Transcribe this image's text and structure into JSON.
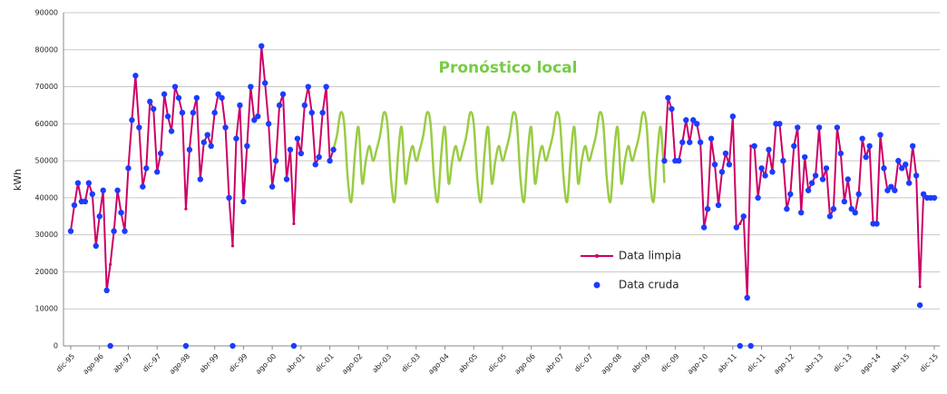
{
  "chart_data": {
    "type": "line",
    "y_label": "kWh",
    "annotation": "Pronóstico local",
    "annotation_color": "#77cc44",
    "ylim": [
      0,
      90000
    ],
    "yticks": [
      0,
      10000,
      20000,
      30000,
      40000,
      50000,
      60000,
      70000,
      80000,
      90000
    ],
    "grid": true,
    "legend": "lower center",
    "categories": [
      "dic-95",
      null,
      null,
      null,
      null,
      null,
      null,
      null,
      "ago-96",
      null,
      null,
      null,
      null,
      null,
      null,
      null,
      "abr-97",
      null,
      null,
      null,
      null,
      null,
      null,
      null,
      "dic-97",
      null,
      null,
      null,
      null,
      null,
      null,
      null,
      "ago-98",
      null,
      null,
      null,
      null,
      null,
      null,
      null,
      "abr-99",
      null,
      null,
      null,
      null,
      null,
      null,
      null,
      "dic-99",
      null,
      null,
      null,
      null,
      null,
      null,
      null,
      "ago-00",
      null,
      null,
      null,
      null,
      null,
      null,
      null,
      "abr-01",
      null,
      null,
      null,
      null,
      null,
      null,
      null,
      "dic-01",
      null,
      null,
      null,
      null,
      null,
      null,
      null,
      "ago-02",
      null,
      null,
      null,
      null,
      null,
      null,
      null,
      "abr-03",
      null,
      null,
      null,
      null,
      null,
      null,
      null,
      "dic-03",
      null,
      null,
      null,
      null,
      null,
      null,
      null,
      "ago-04",
      null,
      null,
      null,
      null,
      null,
      null,
      null,
      "abr-05",
      null,
      null,
      null,
      null,
      null,
      null,
      null,
      "dic-05",
      null,
      null,
      null,
      null,
      null,
      null,
      null,
      "ago-06",
      null,
      null,
      null,
      null,
      null,
      null,
      null,
      "abr-07",
      null,
      null,
      null,
      null,
      null,
      null,
      null,
      "dic-07",
      null,
      null,
      null,
      null,
      null,
      null,
      null,
      "ago-08",
      null,
      null,
      null,
      null,
      null,
      null,
      null,
      "abr-09",
      null,
      null,
      null,
      null,
      null,
      null,
      null,
      "dic-09",
      null,
      null,
      null,
      null,
      null,
      null,
      null,
      "ago-10",
      null,
      null,
      null,
      null,
      null,
      null,
      null,
      "abr-11",
      null,
      null,
      null,
      null,
      null,
      null,
      null,
      "dic-11",
      null,
      null,
      null,
      null,
      null,
      null,
      null,
      "ago-12",
      null,
      null,
      null,
      null,
      null,
      null,
      null,
      "abr-13",
      null,
      null,
      null,
      null,
      null,
      null,
      null,
      "dic-13",
      null,
      null,
      null,
      null,
      null,
      null,
      null,
      "ago-14",
      null,
      null,
      null,
      null,
      null,
      null,
      null,
      "abr-15",
      null,
      null,
      null,
      null,
      null,
      null,
      null,
      "dic-15"
    ],
    "series": [
      {
        "name": "Data limpia",
        "color": "#cc0066",
        "style": "line-markers",
        "values": [
          31000,
          38000,
          44000,
          39000,
          39000,
          44000,
          41000,
          27000,
          35000,
          42000,
          15000,
          22000,
          31000,
          42000,
          36000,
          31000,
          48000,
          61000,
          73000,
          59000,
          43000,
          48000,
          66000,
          64000,
          47000,
          52000,
          68000,
          62000,
          58000,
          70000,
          67000,
          63000,
          37000,
          53000,
          63000,
          67000,
          45000,
          55000,
          57000,
          54000,
          63000,
          68000,
          67000,
          59000,
          40000,
          27000,
          56000,
          65000,
          39000,
          54000,
          70000,
          61000,
          62000,
          81000,
          71000,
          60000,
          43000,
          50000,
          65000,
          68000,
          45000,
          53000,
          33000,
          56000,
          52000,
          65000,
          70000,
          63000,
          49000,
          51000,
          63000,
          70000,
          50000,
          53000,
          null,
          null,
          null,
          null,
          null,
          null,
          null,
          null,
          null,
          null,
          null,
          null,
          null,
          null,
          null,
          null,
          null,
          null,
          null,
          null,
          null,
          null,
          null,
          null,
          null,
          null,
          null,
          null,
          null,
          null,
          null,
          null,
          null,
          null,
          null,
          null,
          null,
          null,
          null,
          null,
          null,
          null,
          null,
          null,
          null,
          null,
          null,
          null,
          null,
          null,
          null,
          null,
          null,
          null,
          null,
          null,
          null,
          null,
          null,
          null,
          null,
          null,
          null,
          null,
          null,
          null,
          null,
          null,
          null,
          null,
          null,
          null,
          null,
          null,
          null,
          null,
          null,
          null,
          null,
          null,
          null,
          null,
          null,
          null,
          null,
          null,
          null,
          null,
          null,
          null,
          null,
          50000,
          67000,
          64000,
          50000,
          50000,
          55000,
          61000,
          55000,
          61000,
          60000,
          55000,
          32000,
          37000,
          56000,
          49000,
          38000,
          47000,
          52000,
          49000,
          62000,
          32000,
          33000,
          35000,
          13000,
          54000,
          54000,
          40000,
          48000,
          46000,
          53000,
          47000,
          60000,
          60000,
          50000,
          37000,
          41000,
          54000,
          59000,
          36000,
          51000,
          42000,
          44000,
          46000,
          59000,
          45000,
          48000,
          35000,
          37000,
          59000,
          52000,
          39000,
          45000,
          37000,
          36000,
          41000,
          56000,
          51000,
          54000,
          33000,
          33000,
          57000,
          48000,
          42000,
          43000,
          42000,
          50000,
          48000,
          49000,
          44000,
          54000,
          46000,
          16000,
          41000,
          40000,
          40000,
          40000
        ]
      },
      {
        "name": "Data cruda",
        "color": "#1a3cff",
        "style": "markers",
        "values": [
          31000,
          38000,
          44000,
          39000,
          39000,
          44000,
          41000,
          27000,
          35000,
          42000,
          15000,
          0,
          31000,
          42000,
          36000,
          31000,
          48000,
          61000,
          73000,
          59000,
          43000,
          48000,
          66000,
          64000,
          47000,
          52000,
          68000,
          62000,
          58000,
          70000,
          67000,
          63000,
          0,
          53000,
          63000,
          67000,
          45000,
          55000,
          57000,
          54000,
          63000,
          68000,
          67000,
          59000,
          40000,
          0,
          56000,
          65000,
          39000,
          54000,
          70000,
          61000,
          62000,
          81000,
          71000,
          60000,
          43000,
          50000,
          65000,
          68000,
          45000,
          53000,
          0,
          56000,
          52000,
          65000,
          70000,
          63000,
          49000,
          51000,
          63000,
          70000,
          50000,
          53000,
          null,
          null,
          null,
          null,
          null,
          null,
          null,
          null,
          null,
          null,
          null,
          null,
          null,
          null,
          null,
          null,
          null,
          null,
          null,
          null,
          null,
          null,
          null,
          null,
          null,
          null,
          null,
          null,
          null,
          null,
          null,
          null,
          null,
          null,
          null,
          null,
          null,
          null,
          null,
          null,
          null,
          null,
          null,
          null,
          null,
          null,
          null,
          null,
          null,
          null,
          null,
          null,
          null,
          null,
          null,
          null,
          null,
          null,
          null,
          null,
          null,
          null,
          null,
          null,
          null,
          null,
          null,
          null,
          null,
          null,
          null,
          null,
          null,
          null,
          null,
          null,
          null,
          null,
          null,
          null,
          null,
          null,
          null,
          null,
          null,
          null,
          null,
          null,
          null,
          null,
          null,
          50000,
          67000,
          64000,
          50000,
          50000,
          55000,
          61000,
          55000,
          61000,
          60000,
          55000,
          32000,
          37000,
          56000,
          49000,
          38000,
          47000,
          52000,
          49000,
          62000,
          32000,
          0,
          35000,
          13000,
          0,
          54000,
          40000,
          48000,
          46000,
          53000,
          47000,
          60000,
          60000,
          50000,
          37000,
          41000,
          54000,
          59000,
          36000,
          51000,
          42000,
          44000,
          46000,
          59000,
          45000,
          48000,
          35000,
          37000,
          59000,
          52000,
          39000,
          45000,
          37000,
          36000,
          41000,
          56000,
          51000,
          54000,
          33000,
          33000,
          57000,
          48000,
          42000,
          43000,
          42000,
          50000,
          48000,
          49000,
          44000,
          54000,
          46000,
          11000,
          41000,
          40000,
          40000,
          40000
        ]
      },
      {
        "color": "#99cc44",
        "style": "smooth",
        "values": [
          null,
          null,
          null,
          null,
          null,
          null,
          null,
          null,
          null,
          null,
          null,
          null,
          null,
          null,
          null,
          null,
          null,
          null,
          null,
          null,
          null,
          null,
          null,
          null,
          null,
          null,
          null,
          null,
          null,
          null,
          null,
          null,
          null,
          null,
          null,
          null,
          null,
          null,
          null,
          null,
          null,
          null,
          null,
          null,
          null,
          null,
          null,
          null,
          null,
          null,
          null,
          null,
          null,
          null,
          null,
          null,
          null,
          null,
          null,
          null,
          null,
          null,
          null,
          null,
          null,
          null,
          null,
          null,
          null,
          null,
          null,
          null,
          null,
          53000,
          57000,
          63000,
          60000,
          45000,
          39000,
          52000,
          59000,
          44000,
          50000,
          54000,
          50000,
          53000,
          57000,
          63000,
          60000,
          45000,
          39000,
          52000,
          59000,
          44000,
          50000,
          54000,
          50000,
          53000,
          57000,
          63000,
          60000,
          45000,
          39000,
          52000,
          59000,
          44000,
          50000,
          54000,
          50000,
          53000,
          57000,
          63000,
          60000,
          45000,
          39000,
          52000,
          59000,
          44000,
          50000,
          54000,
          50000,
          53000,
          57000,
          63000,
          60000,
          45000,
          39000,
          52000,
          59000,
          44000,
          50000,
          54000,
          50000,
          53000,
          57000,
          63000,
          60000,
          45000,
          39000,
          52000,
          59000,
          44000,
          50000,
          54000,
          50000,
          53000,
          57000,
          63000,
          60000,
          45000,
          39000,
          52000,
          59000,
          44000,
          50000,
          54000,
          50000,
          53000,
          57000,
          63000,
          60000,
          45000,
          39000,
          52000,
          59000,
          44000,
          null,
          null,
          null,
          null,
          null,
          null,
          null,
          null,
          null,
          null,
          null,
          null,
          null,
          null,
          null,
          null,
          null,
          null,
          null,
          null,
          null,
          null,
          null,
          null,
          null,
          null,
          null,
          null,
          null,
          null,
          null,
          null,
          null,
          null,
          null,
          null,
          null,
          null,
          null,
          null,
          null,
          null,
          null,
          null,
          null,
          null,
          null,
          null,
          null,
          null,
          null,
          null,
          null,
          null,
          null,
          null,
          null,
          null,
          null,
          null,
          null,
          null,
          null,
          null,
          null,
          null,
          null,
          null,
          null,
          null,
          null,
          null,
          null,
          null,
          null
        ]
      }
    ]
  }
}
